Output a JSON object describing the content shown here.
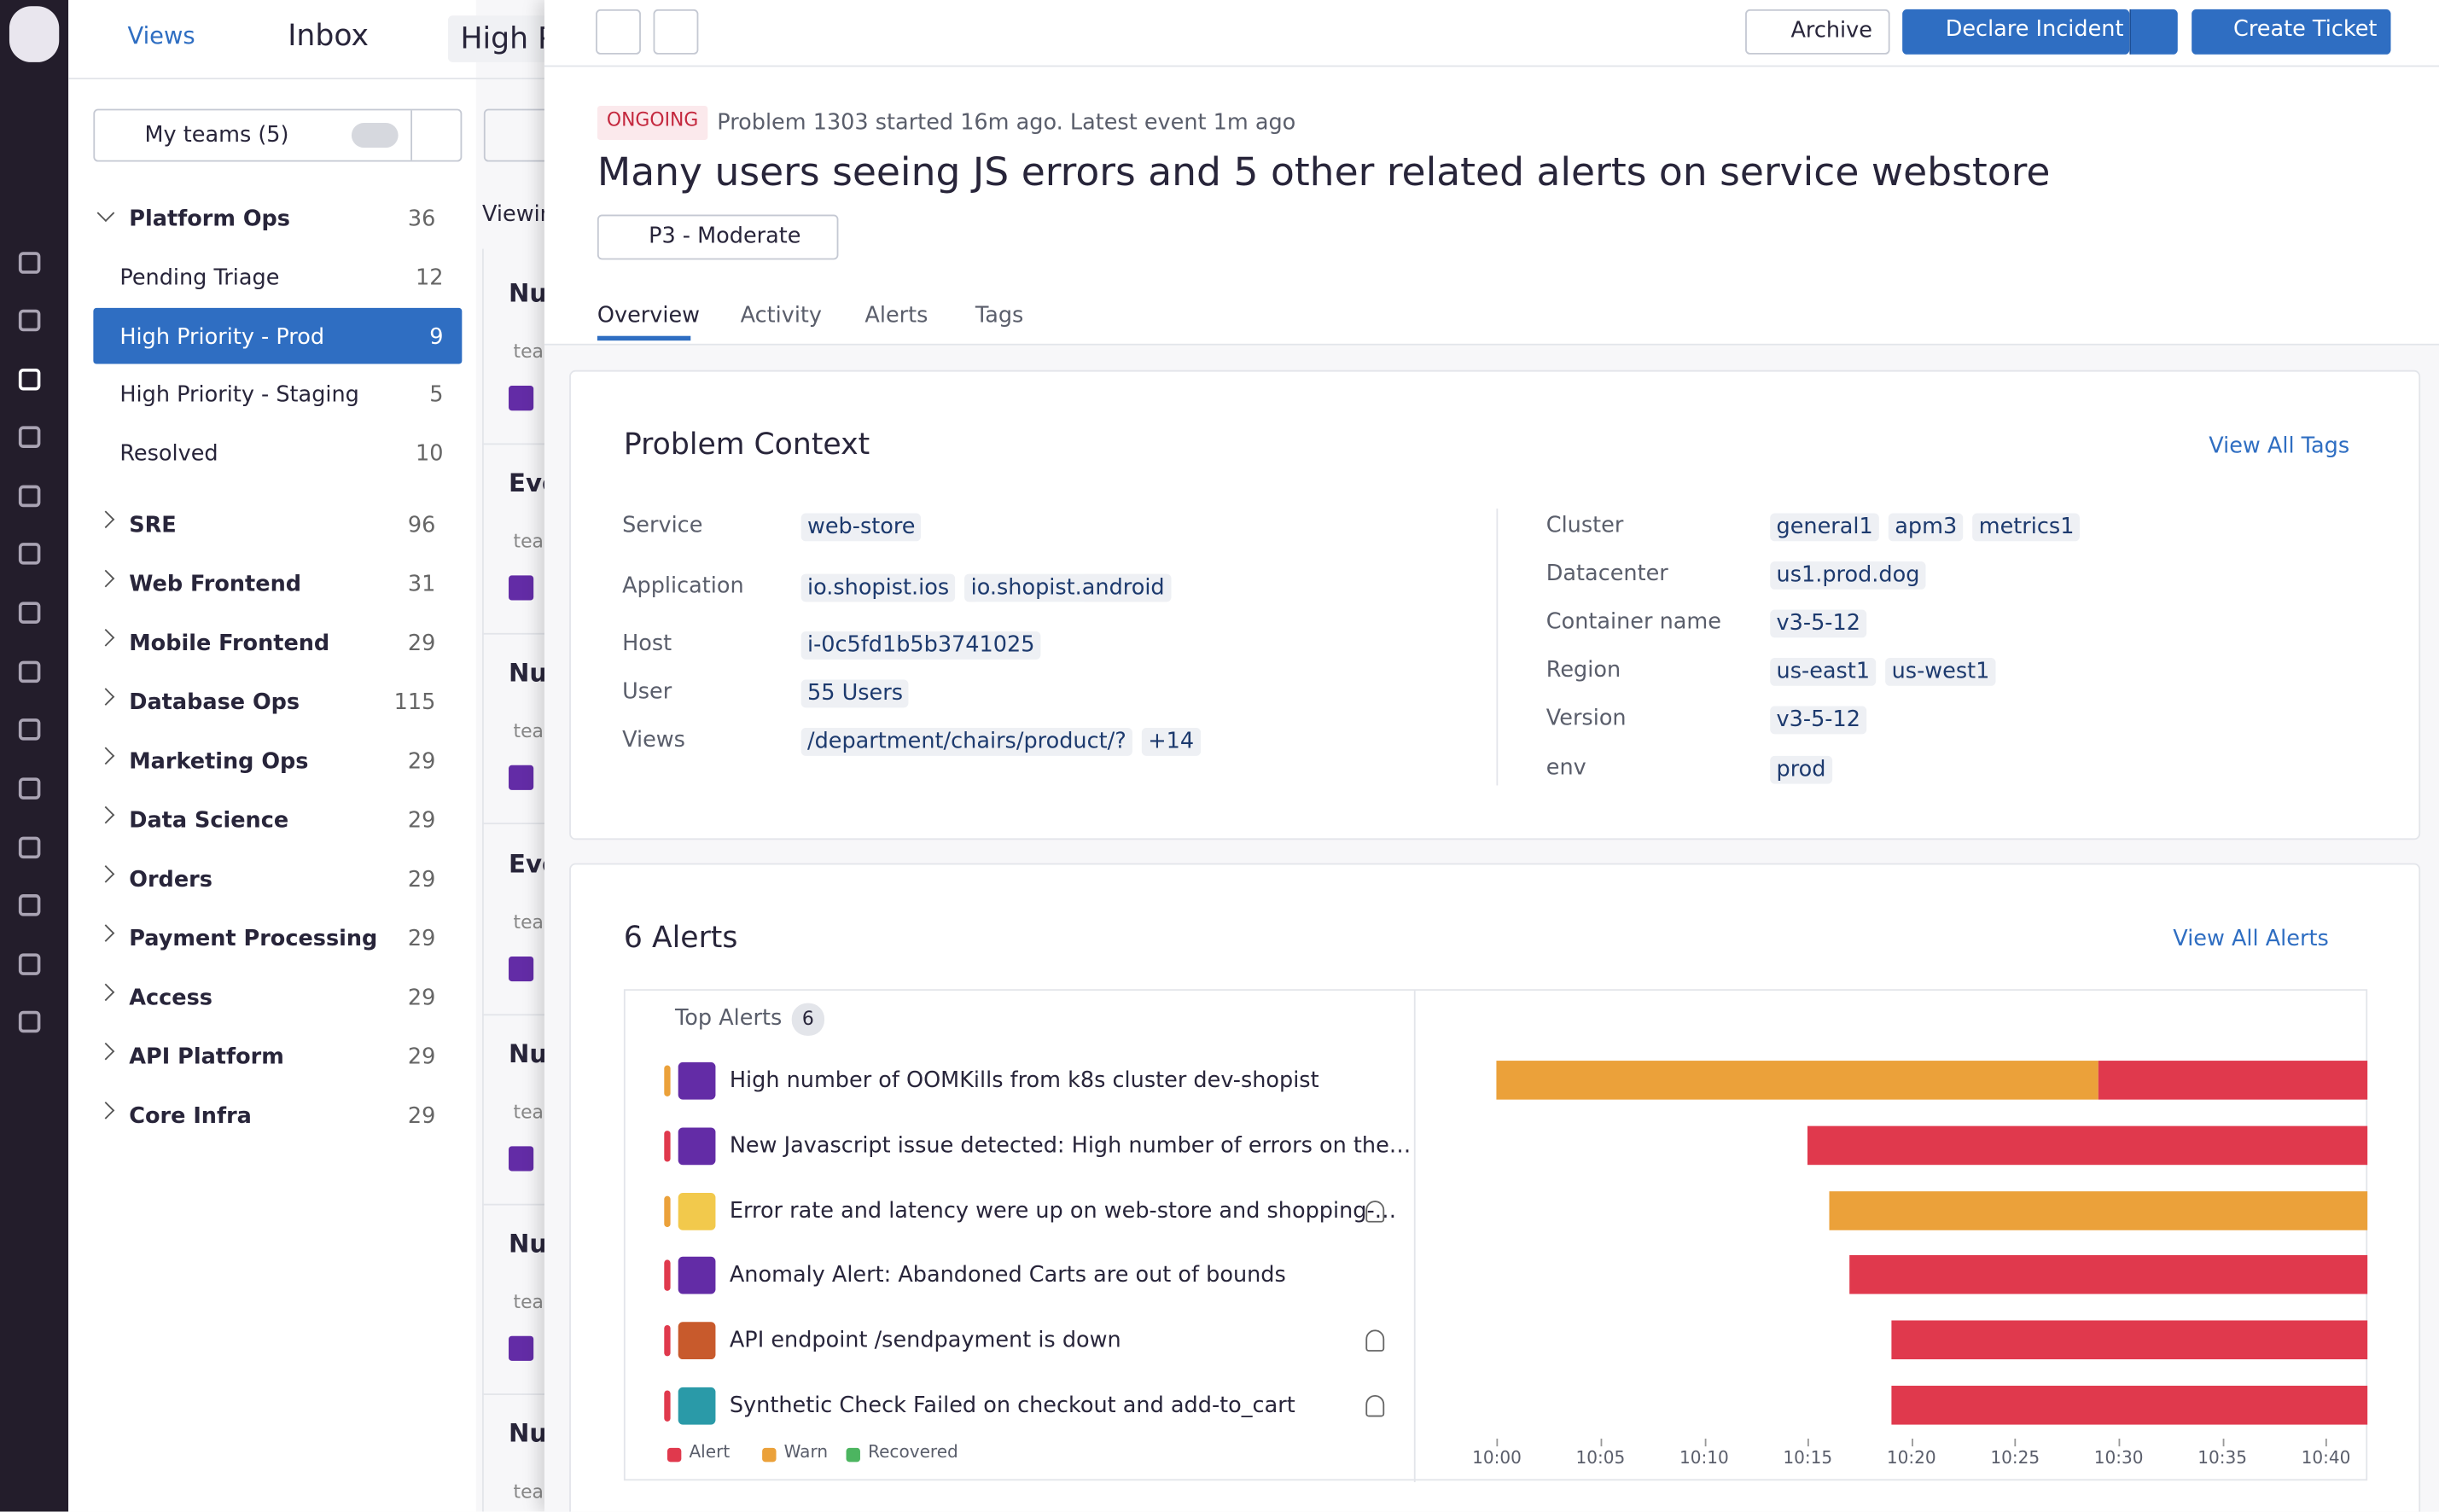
{
  "nav": {
    "views": "Views",
    "inbox": "Inbox",
    "tab": "High P"
  },
  "filter": {
    "teams": "My teams (5)"
  },
  "teams": [
    {
      "name": "Platform Ops",
      "count": 36,
      "expanded": true,
      "children": [
        {
          "name": "Pending Triage",
          "count": 12
        },
        {
          "name": "High Priority - Prod",
          "count": 9,
          "selected": true
        },
        {
          "name": "High Priority - Staging",
          "count": 5
        },
        {
          "name": "Resolved",
          "count": 10
        }
      ]
    },
    {
      "name": "SRE",
      "count": 96
    },
    {
      "name": "Web Frontend",
      "count": 31
    },
    {
      "name": "Mobile Frontend",
      "count": 29
    },
    {
      "name": "Database Ops",
      "count": 115
    },
    {
      "name": "Marketing Ops",
      "count": 29
    },
    {
      "name": "Data Science",
      "count": 29
    },
    {
      "name": "Orders",
      "count": 29
    },
    {
      "name": "Payment Processing",
      "count": 29
    },
    {
      "name": "Access",
      "count": 29
    },
    {
      "name": "API Platform",
      "count": 29
    },
    {
      "name": "Core Infra",
      "count": 29
    }
  ],
  "list": {
    "header": "Viewin",
    "items": [
      {
        "title": "Nu",
        "tag": "tea"
      },
      {
        "title": "Eve",
        "tag": "tea"
      },
      {
        "title": "Nu",
        "tag": "tea"
      },
      {
        "title": "Eve",
        "tag": "tea"
      },
      {
        "title": "Nu",
        "tag": "tea"
      },
      {
        "title": "Nu",
        "tag": "tea"
      },
      {
        "title": "Nu",
        "tag": "tea"
      }
    ]
  },
  "toolbar": {
    "archive": "Archive",
    "declare": "Declare Incident",
    "create": "Create Ticket"
  },
  "problem": {
    "status": "ONGOING",
    "meta": "Problem 1303 started 16m ago. Latest event 1m ago",
    "title": "Many users seeing JS errors and 5 other related alerts on service webstore",
    "priority": "P3 - Moderate",
    "tabs": [
      "Overview",
      "Activity",
      "Alerts",
      "Tags"
    ]
  },
  "context": {
    "title": "Problem Context",
    "link": "View All Tags",
    "left": [
      {
        "label": "Service",
        "values": [
          "web-store"
        ]
      },
      {
        "label": "Application",
        "values": [
          "io.shopist.ios",
          "io.shopist.android"
        ]
      },
      {
        "label": "Host",
        "values": [
          "i-0c5fd1b5b3741025"
        ]
      },
      {
        "label": "User",
        "values": [
          "55 Users"
        ]
      },
      {
        "label": "Views",
        "values": [
          "/department/chairs/product/?",
          "+14"
        ]
      }
    ],
    "right": [
      {
        "label": "Cluster",
        "values": [
          "general1",
          "apm3",
          "metrics1"
        ]
      },
      {
        "label": "Datacenter",
        "values": [
          "us1.prod.dog"
        ]
      },
      {
        "label": "Container name",
        "values": [
          "v3-5-12"
        ]
      },
      {
        "label": "Region",
        "values": [
          "us-east1",
          "us-west1"
        ]
      },
      {
        "label": "Version",
        "values": [
          "v3-5-12"
        ]
      },
      {
        "label": "env",
        "values": [
          "prod"
        ]
      }
    ]
  },
  "alerts": {
    "title": "6 Alerts",
    "link": "View All Alerts",
    "group": "Top Alerts",
    "group_count": 6,
    "xlim": [
      "09:56",
      "10:42"
    ],
    "xticks": [
      "10:00",
      "10:05",
      "10:10",
      "10:15",
      "10:20",
      "10:25",
      "10:30",
      "10:35",
      "10:40"
    ],
    "legend": [
      {
        "name": "Alert",
        "color": "#e0394d"
      },
      {
        "name": "Warn",
        "color": "#eba13a"
      },
      {
        "name": "Recovered",
        "color": "#4cb560"
      }
    ],
    "items": [
      {
        "title": "High number of OOMKills from k8s cluster dev-shopist",
        "icon_color": "#632ca6",
        "bell": false,
        "segments": [
          {
            "status": "Warn",
            "start": "10:00",
            "end": "10:29"
          },
          {
            "status": "Alert",
            "start": "10:29",
            "end": "10:42"
          }
        ]
      },
      {
        "title": "New Javascript issue detected: High number of errors on the…",
        "icon_color": "#632ca6",
        "bell": false,
        "segments": [
          {
            "status": "Alert",
            "start": "10:15",
            "end": "10:42"
          }
        ]
      },
      {
        "title": "Error rate and latency were up on web-store and shopping-…",
        "icon_color": "#f2c94c",
        "bell": true,
        "segments": [
          {
            "status": "Warn",
            "start": "10:16",
            "end": "10:42"
          }
        ]
      },
      {
        "title": "Anomaly Alert: Abandoned Carts are out of bounds",
        "icon_color": "#632ca6",
        "bell": false,
        "segments": [
          {
            "status": "Alert",
            "start": "10:17",
            "end": "10:42"
          }
        ]
      },
      {
        "title": "API endpoint /sendpayment is down",
        "icon_color": "#c85a2c",
        "bell": true,
        "segments": [
          {
            "status": "Alert",
            "start": "10:19",
            "end": "10:42"
          }
        ]
      },
      {
        "title": "Synthetic Check Failed on checkout and add-to_cart",
        "icon_color": "#2a9aa8",
        "bell": true,
        "segments": [
          {
            "status": "Alert",
            "start": "10:19",
            "end": "10:42"
          }
        ]
      }
    ]
  }
}
